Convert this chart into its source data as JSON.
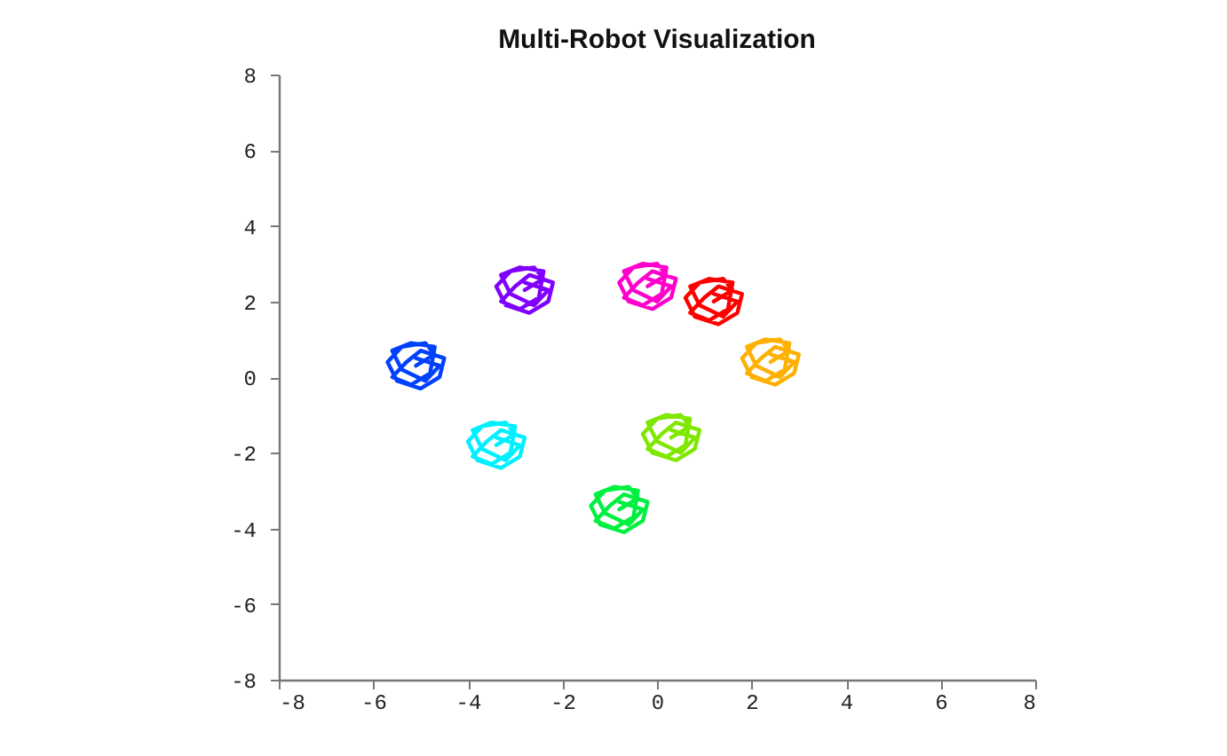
{
  "chart_data": {
    "type": "line",
    "title": "Multi-Robot Visualization",
    "xlim": [
      -8,
      8
    ],
    "ylim": [
      -8,
      8
    ],
    "xticks": [
      -8,
      -6,
      -4,
      -2,
      0,
      2,
      4,
      6,
      8
    ],
    "yticks": [
      -8,
      -6,
      -4,
      -2,
      0,
      2,
      4,
      6,
      8
    ],
    "grid": false,
    "marker": "none",
    "line_style": "solid",
    "series": [
      {
        "color": "#0040ff",
        "x": [
          -5.1,
          -4.7,
          -4.9,
          -5.4,
          -5.7,
          -5.5,
          -5.0,
          -4.6,
          -4.5,
          -5.0,
          -5.3,
          -5.6,
          -5.2,
          -4.8,
          -4.7,
          -5.2,
          -5.6,
          -5.4,
          -4.9,
          -4.6,
          -5.1
        ],
        "values": [
          0.3,
          0.6,
          0.9,
          0.8,
          0.4,
          -0.1,
          -0.3,
          0,
          0.5,
          0.7,
          0.4,
          0,
          -0.2,
          0.1,
          0.8,
          0.9,
          0.7,
          0.2,
          -0.1,
          0.3,
          0.5
        ]
      },
      {
        "color": "#00f0ff",
        "x": [
          -3.4,
          -3.0,
          -3.2,
          -3.7,
          -4.0,
          -3.8,
          -3.3,
          -2.9,
          -2.8,
          -3.3,
          -3.6,
          -3.9,
          -3.5,
          -3.1,
          -3.0,
          -3.5,
          -3.9,
          -3.7,
          -3.2,
          -2.9,
          -3.4
        ],
        "values": [
          -1.8,
          -1.5,
          -1.2,
          -1.3,
          -1.7,
          -2.2,
          -2.4,
          -2.1,
          -1.6,
          -1.4,
          -1.7,
          -2.1,
          -2.3,
          -2.0,
          -1.3,
          -1.2,
          -1.4,
          -1.9,
          -2.2,
          -1.8,
          -1.6
        ]
      },
      {
        "color": "#8000ff",
        "x": [
          -2.8,
          -2.4,
          -2.6,
          -3.1,
          -3.4,
          -3.2,
          -2.7,
          -2.3,
          -2.2,
          -2.7,
          -3.0,
          -3.3,
          -2.9,
          -2.5,
          -2.4,
          -2.9,
          -3.3,
          -3.1,
          -2.6,
          -2.3,
          -2.8
        ],
        "values": [
          2.3,
          2.6,
          2.9,
          2.8,
          2.4,
          1.9,
          1.7,
          2.0,
          2.5,
          2.7,
          2.4,
          2.0,
          1.8,
          2.1,
          2.8,
          2.9,
          2.7,
          2.2,
          1.9,
          2.3,
          2.5
        ]
      },
      {
        "color": "#ff00cc",
        "x": [
          -0.2,
          0.2,
          0,
          -0.5,
          -0.8,
          -0.6,
          -0.1,
          0.3,
          0.4,
          -0.1,
          -0.4,
          -0.7,
          -0.3,
          0.1,
          0.2,
          -0.3,
          -0.7,
          -0.5,
          0,
          0.3,
          -0.2
        ],
        "values": [
          2.4,
          2.7,
          3.0,
          2.9,
          2.5,
          2.0,
          1.8,
          2.1,
          2.6,
          2.8,
          2.5,
          2.1,
          1.9,
          2.2,
          2.9,
          3.0,
          2.8,
          2.3,
          2.0,
          2.4,
          2.6
        ]
      },
      {
        "color": "#ff0000",
        "x": [
          1.2,
          1.6,
          1.4,
          0.9,
          0.6,
          0.8,
          1.3,
          1.7,
          1.8,
          1.3,
          1.0,
          0.7,
          1.1,
          1.5,
          1.6,
          1.1,
          0.7,
          0.9,
          1.4,
          1.7,
          1.2
        ],
        "values": [
          2.0,
          2.3,
          2.6,
          2.5,
          2.1,
          1.6,
          1.4,
          1.7,
          2.2,
          2.4,
          2.1,
          1.7,
          1.5,
          1.8,
          2.5,
          2.6,
          2.4,
          1.9,
          1.6,
          2.0,
          2.2
        ]
      },
      {
        "color": "#ffb000",
        "x": [
          2.4,
          2.8,
          2.6,
          2.1,
          1.8,
          2.0,
          2.5,
          2.9,
          3.0,
          2.5,
          2.2,
          1.9,
          2.3,
          2.7,
          2.8,
          2.3,
          1.9,
          2.1,
          2.6,
          2.9,
          2.4
        ],
        "values": [
          0.4,
          0.7,
          1.0,
          0.9,
          0.5,
          0,
          -0.2,
          0.1,
          0.6,
          0.8,
          0.5,
          0.1,
          -0.1,
          0.2,
          0.9,
          1.0,
          0.8,
          0.3,
          0,
          0.4,
          0.6
        ]
      },
      {
        "color": "#80e800",
        "x": [
          0.3,
          0.7,
          0.5,
          0,
          -0.3,
          -0.1,
          0.4,
          0.8,
          0.9,
          0.4,
          0.1,
          -0.2,
          0.2,
          0.6,
          0.7,
          0.2,
          -0.2,
          0,
          0.5,
          0.8,
          0.3
        ],
        "values": [
          -1.6,
          -1.3,
          -1.0,
          -1.1,
          -1.5,
          -2.0,
          -2.2,
          -1.9,
          -1.4,
          -1.2,
          -1.5,
          -1.9,
          -2.1,
          -1.8,
          -1.1,
          -1.0,
          -1.2,
          -1.7,
          -2.0,
          -1.6,
          -1.4
        ]
      },
      {
        "color": "#00f040",
        "x": [
          -0.8,
          -0.4,
          -0.6,
          -1.1,
          -1.4,
          -1.2,
          -0.7,
          -0.3,
          -0.2,
          -0.7,
          -1.0,
          -1.3,
          -0.9,
          -0.5,
          -0.4,
          -0.9,
          -1.3,
          -1.1,
          -0.6,
          -0.3,
          -0.8
        ],
        "values": [
          -3.5,
          -3.2,
          -2.9,
          -3.0,
          -3.4,
          -3.9,
          -4.1,
          -3.8,
          -3.3,
          -3.1,
          -3.4,
          -3.8,
          -4.0,
          -3.7,
          -3.0,
          -2.9,
          -3.1,
          -3.6,
          -3.9,
          -3.5,
          -3.3
        ]
      }
    ]
  }
}
